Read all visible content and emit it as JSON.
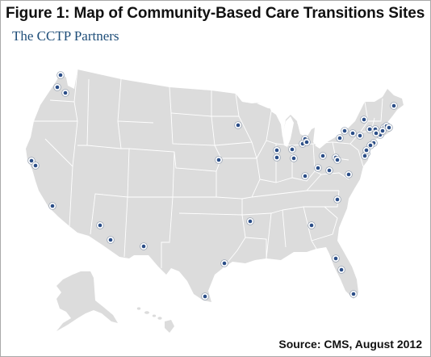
{
  "title": "Figure 1: Map of Community-Based Care Transitions Sites",
  "subtitle": "The CCTP Partners",
  "source": "Source: CMS, August 2012",
  "colors": {
    "land": "#dcdcdc",
    "state_borders": "#ffffff",
    "site_marker": "#2a4d87",
    "subtitle_text": "#1f4e79"
  },
  "map": {
    "region": "United States (contiguous US, Alaska, Hawaii)",
    "marker_icon": "site-marker-icon",
    "site_count": 52
  }
}
